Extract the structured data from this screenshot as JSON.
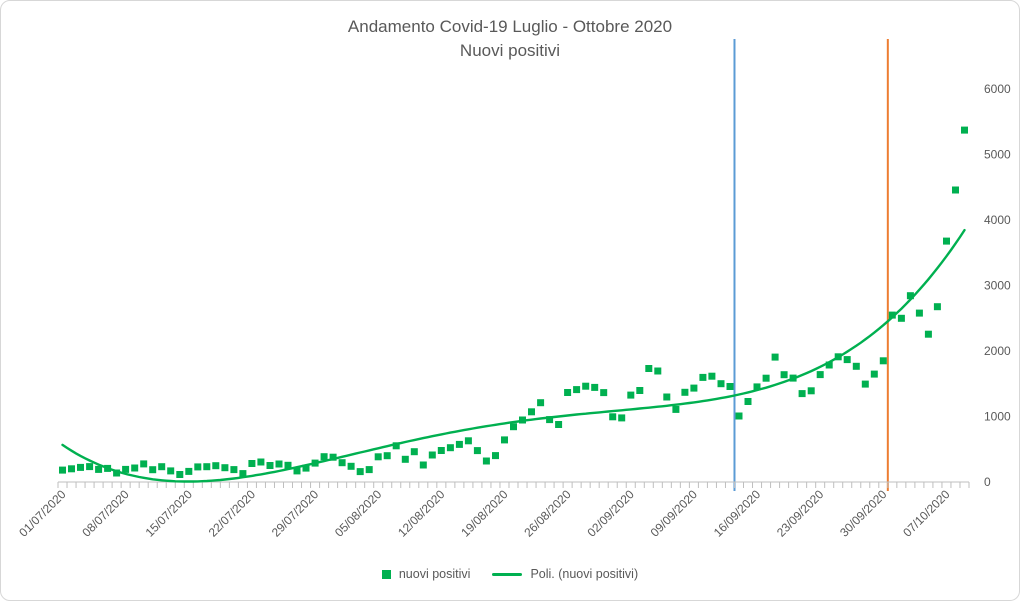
{
  "colors": {
    "series_green": "#00B050",
    "vline_blue": "#5B9BD5",
    "vline_orange": "#ED7D31",
    "text_gray": "#595959",
    "axis_gray": "#BFBFBF",
    "frame_border": "#D7D7D7"
  },
  "chart_data": {
    "type": "scatter",
    "title": "Andamento Covid-19 Luglio - Ottobre 2020",
    "subtitle": "Nuovi positivi",
    "x_start": "01/07/2020",
    "x_end": "09/10/2020",
    "x_tick_labels": [
      "01/07/2020",
      "08/07/2020",
      "15/07/2020",
      "22/07/2020",
      "29/07/2020",
      "05/08/2020",
      "12/08/2020",
      "19/08/2020",
      "26/08/2020",
      "02/09/2020",
      "09/09/2020",
      "16/09/2020",
      "23/09/2020",
      "30/09/2020",
      "07/10/2020"
    ],
    "x_tick_day_indexes": [
      0,
      7,
      14,
      21,
      28,
      35,
      42,
      49,
      56,
      63,
      70,
      77,
      84,
      91,
      98
    ],
    "ylim": [
      0,
      6000
    ],
    "yticks": [
      0,
      1000,
      2000,
      3000,
      4000,
      5000,
      6000
    ],
    "grid": false,
    "legend_position": "bottom",
    "series": [
      {
        "name": "nuovi positivi",
        "type": "scatter",
        "marker": "square",
        "color": "#00B050",
        "values": [
          182,
          201,
          223,
          235,
          192,
          208,
          137,
          193,
          214,
          276,
          188,
          234,
          169,
          114,
          162,
          230,
          233,
          249,
          219,
          190,
          128,
          282,
          306,
          252,
          275,
          255,
          170,
          212,
          289,
          386,
          379,
          295,
          239,
          159,
          190,
          384,
          402,
          552,
          347,
          463,
          259,
          412,
          481,
          523,
          574,
          629,
          479,
          320,
          403,
          642,
          845,
          947,
          1071,
          1210,
          953,
          878,
          1367,
          1411,
          1462,
          1444,
          1365,
          996,
          978,
          1326,
          1397,
          1733,
          1694,
          1297,
          1108,
          1370,
          1434,
          1597,
          1616,
          1501,
          1458,
          1008,
          1229,
          1452,
          1585,
          1907,
          1638,
          1587,
          1350,
          1392,
          1640,
          1786,
          1912,
          1869,
          1766,
          1494,
          1648,
          1851,
          2548,
          2499,
          2844,
          2578,
          2257,
          2677,
          3678,
          4458,
          5372
        ]
      },
      {
        "name": "Poli. (nuovi positivi)",
        "type": "trendline-polynomial",
        "degree": 4,
        "color": "#00B050"
      }
    ],
    "vlines": [
      {
        "color": "#5B9BD5",
        "day_boundary": 75
      },
      {
        "color": "#ED7D31",
        "day_boundary": 92
      }
    ]
  }
}
